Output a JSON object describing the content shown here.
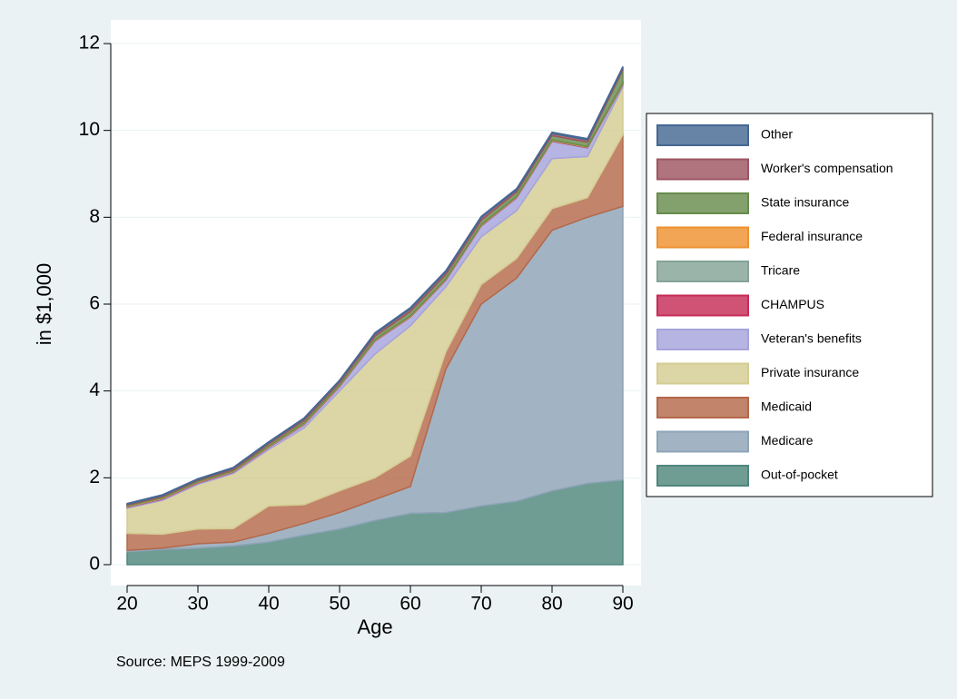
{
  "chart_data": {
    "type": "area",
    "stacked": true,
    "y_label": "in $1,000",
    "x_label": "Age",
    "note": "Source: MEPS 1999-2009",
    "x": [
      20,
      25,
      30,
      35,
      40,
      45,
      50,
      55,
      60,
      65,
      70,
      75,
      80,
      85,
      90
    ],
    "xlim": [
      20,
      90
    ],
    "xticks": [
      20,
      30,
      40,
      50,
      60,
      70,
      80,
      90
    ],
    "ylim": [
      0,
      12
    ],
    "yticks": [
      0,
      2,
      4,
      6,
      8,
      10,
      12
    ],
    "grid": true,
    "series": [
      {
        "name": "Out-of-pocket",
        "color": "#4f877d",
        "values": [
          0.3,
          0.35,
          0.38,
          0.43,
          0.52,
          0.68,
          0.82,
          1.02,
          1.18,
          1.2,
          1.35,
          1.46,
          1.7,
          1.87,
          1.95
        ]
      },
      {
        "name": "Medicare",
        "color": "#8ea4b7",
        "values": [
          0.03,
          0.03,
          0.1,
          0.09,
          0.2,
          0.27,
          0.38,
          0.48,
          0.62,
          3.3,
          4.65,
          5.14,
          6.0,
          6.13,
          6.3
        ]
      },
      {
        "name": "Medicaid",
        "color": "#b4694a",
        "values": [
          0.39,
          0.32,
          0.34,
          0.31,
          0.63,
          0.43,
          0.5,
          0.5,
          0.7,
          0.4,
          0.45,
          0.45,
          0.5,
          0.45,
          1.65
        ]
      },
      {
        "name": "Private insurance",
        "color": "#d4cc92",
        "values": [
          0.58,
          0.78,
          1.03,
          1.27,
          1.3,
          1.77,
          2.3,
          2.85,
          3.0,
          1.5,
          1.1,
          1.1,
          1.15,
          0.95,
          1.1
        ]
      },
      {
        "name": "Veteran's benefits",
        "color": "#a6a3dc",
        "values": [
          0.02,
          0.03,
          0.03,
          0.03,
          0.05,
          0.08,
          0.1,
          0.3,
          0.2,
          0.15,
          0.25,
          0.3,
          0.4,
          0.2,
          0.05
        ]
      },
      {
        "name": "CHAMPUS",
        "color": "#c62c57",
        "values": [
          0.01,
          0.01,
          0.01,
          0.01,
          0.01,
          0.01,
          0.01,
          0.01,
          0.01,
          0.01,
          0.01,
          0.01,
          0.01,
          0.01,
          0.01
        ]
      },
      {
        "name": "Tricare",
        "color": "#85a397",
        "values": [
          0.01,
          0.01,
          0.01,
          0.01,
          0.01,
          0.01,
          0.01,
          0.01,
          0.01,
          0.01,
          0.01,
          0.01,
          0.01,
          0.01,
          0.02
        ]
      },
      {
        "name": "Federal insurance",
        "color": "#ee9130",
        "values": [
          0.01,
          0.01,
          0.01,
          0.01,
          0.01,
          0.01,
          0.01,
          0.01,
          0.01,
          0.01,
          0.01,
          0.01,
          0.01,
          0.01,
          0.01
        ]
      },
      {
        "name": "State insurance",
        "color": "#688c4c",
        "values": [
          0.02,
          0.03,
          0.03,
          0.03,
          0.05,
          0.06,
          0.06,
          0.08,
          0.1,
          0.1,
          0.1,
          0.1,
          0.1,
          0.1,
          0.3
        ]
      },
      {
        "name": "Worker's compensation",
        "color": "#9e5560",
        "values": [
          0.02,
          0.02,
          0.02,
          0.03,
          0.03,
          0.04,
          0.04,
          0.05,
          0.06,
          0.06,
          0.06,
          0.05,
          0.05,
          0.05,
          0.05
        ]
      },
      {
        "name": "Other",
        "color": "#466893",
        "values": [
          0.02,
          0.02,
          0.02,
          0.02,
          0.02,
          0.02,
          0.02,
          0.03,
          0.03,
          0.03,
          0.03,
          0.03,
          0.03,
          0.03,
          0.03
        ]
      }
    ]
  }
}
